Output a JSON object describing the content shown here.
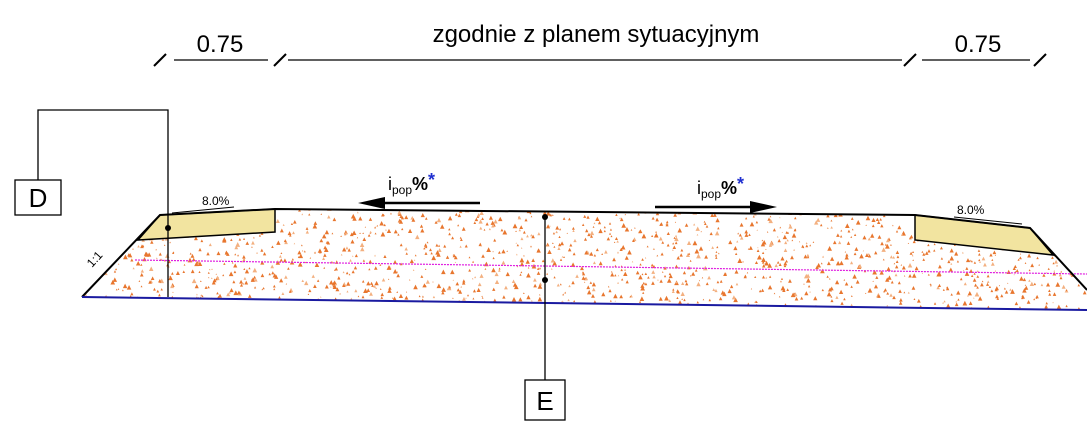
{
  "dimensions": {
    "left": "0.75",
    "center": "zgodnie z planem sytuacyjnym",
    "right": "0.75"
  },
  "slopes": {
    "left": "8.0%",
    "right": "8.0%"
  },
  "crossfall": [
    {
      "symbol": "i",
      "subscript": "pop",
      "unit": "%",
      "mark": "*"
    },
    {
      "symbol": "i",
      "subscript": "pop",
      "unit": "%",
      "mark": "*"
    }
  ],
  "labels": {
    "d": "D",
    "e": "E",
    "embankment": "1:1"
  }
}
